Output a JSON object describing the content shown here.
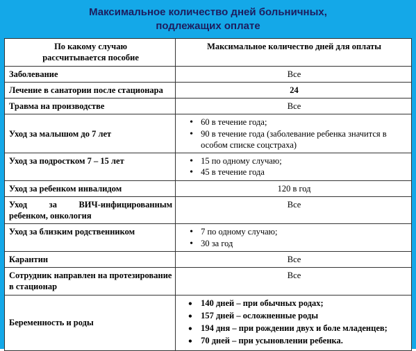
{
  "outer_bg": "#14a8e8",
  "title_line1": "Максимальное количество дней больничных,",
  "title_line2": "подлежащих оплате",
  "header_left_l1": "По какому случаю",
  "header_left_l2": "рассчитывается пособие",
  "header_right": "Максимальное количество дней для оплаты",
  "rows": {
    "r1_left": "Заболевание",
    "r1_right": "Все",
    "r2_left": "Лечение в санатории после стационара",
    "r2_right": "24",
    "r3_left": "Травма на производстве",
    "r3_right": "Все",
    "r4_left": "Уход за малышом до 7 лет",
    "r4_b1": "60 в течение года;",
    "r4_b2": "90 в течение года (заболевание ребенка значится в особом списке соцстраха)",
    "r5_left": "Уход за подростком 7 – 15 лет",
    "r5_b1": "15 по одному случаю;",
    "r5_b2": "45 в течение года",
    "r6_left": "Уход за ребенком инвалидом",
    "r6_right": "120 в год",
    "r7_left": "Уход за ВИЧ-инфицированным ребенком, онкология",
    "r7_right": "Все",
    "r8_left": "Уход за близким родственником",
    "r8_b1": "7 по одному случаю;",
    "r8_b2": "30 за год",
    "r9_left": "Карантин",
    "r9_right": "Все",
    "r10_left": "Сотрудник направлен на протезирование в стационар",
    "r10_right": "Все",
    "r11_left": "Беременность и роды",
    "r11_b1": "140 дней – при обычных родах;",
    "r11_b2": "157 дней – осложненные роды",
    "r11_b3": "194 дня – при рождении двух и боле младенцев;",
    "r11_b4": "70 дней – при усыновлении ребенка."
  }
}
